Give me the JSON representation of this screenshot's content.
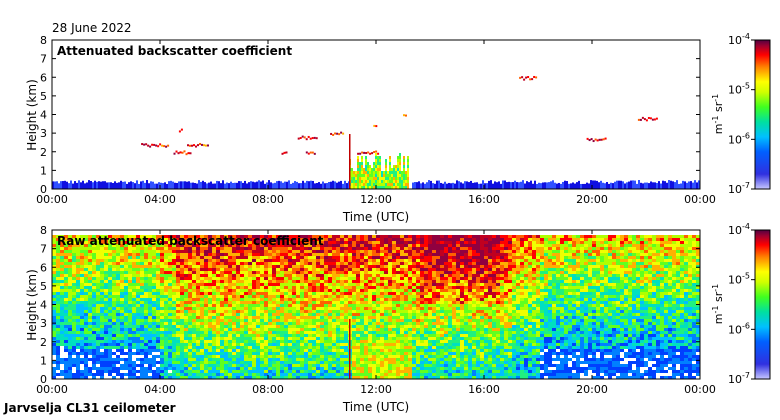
{
  "header": {
    "date": "28 June 2022"
  },
  "footer": {
    "station": "Jarvselja CL31 ceilometer"
  },
  "colorbar": {
    "ticks": [
      "10^-4",
      "10^-5",
      "10^-6",
      "10^-7"
    ],
    "unit": "m^-1 sr^-1",
    "colors": [
      "#b0b0ff",
      "#3030e0",
      "#0000ff",
      "#00b0ff",
      "#00e0a0",
      "#30ff30",
      "#c0ff00",
      "#ffff00",
      "#ff8000",
      "#ff0000",
      "#c00000",
      "#800060",
      "#500040"
    ]
  },
  "chart_data": [
    {
      "type": "heatmap",
      "title": "Attenuated backscatter coefficient",
      "xlabel": "Time (UTC)",
      "ylabel": "Height (km)",
      "xlim": [
        0,
        24
      ],
      "ylim": [
        0,
        8
      ],
      "x_ticks": [
        "00:00",
        "04:00",
        "08:00",
        "12:00",
        "16:00",
        "20:00",
        "00:00"
      ],
      "y_ticks": [
        "0",
        "1",
        "2",
        "3",
        "4",
        "5",
        "6",
        "7",
        "8"
      ],
      "log_color_scale": [
        -7,
        -4
      ]
    },
    {
      "type": "heatmap",
      "title": "Raw attenuated backscatter coefficient",
      "xlabel": "Time (UTC)",
      "ylabel": "Height (km)",
      "xlim": [
        0,
        24
      ],
      "ylim": [
        0,
        8
      ],
      "x_ticks": [
        "00:00",
        "04:00",
        "08:00",
        "12:00",
        "16:00",
        "20:00",
        "00:00"
      ],
      "y_ticks": [
        "0",
        "1",
        "2",
        "3",
        "4",
        "5",
        "6",
        "7",
        "8"
      ],
      "log_color_scale": [
        -7,
        -4
      ]
    }
  ]
}
